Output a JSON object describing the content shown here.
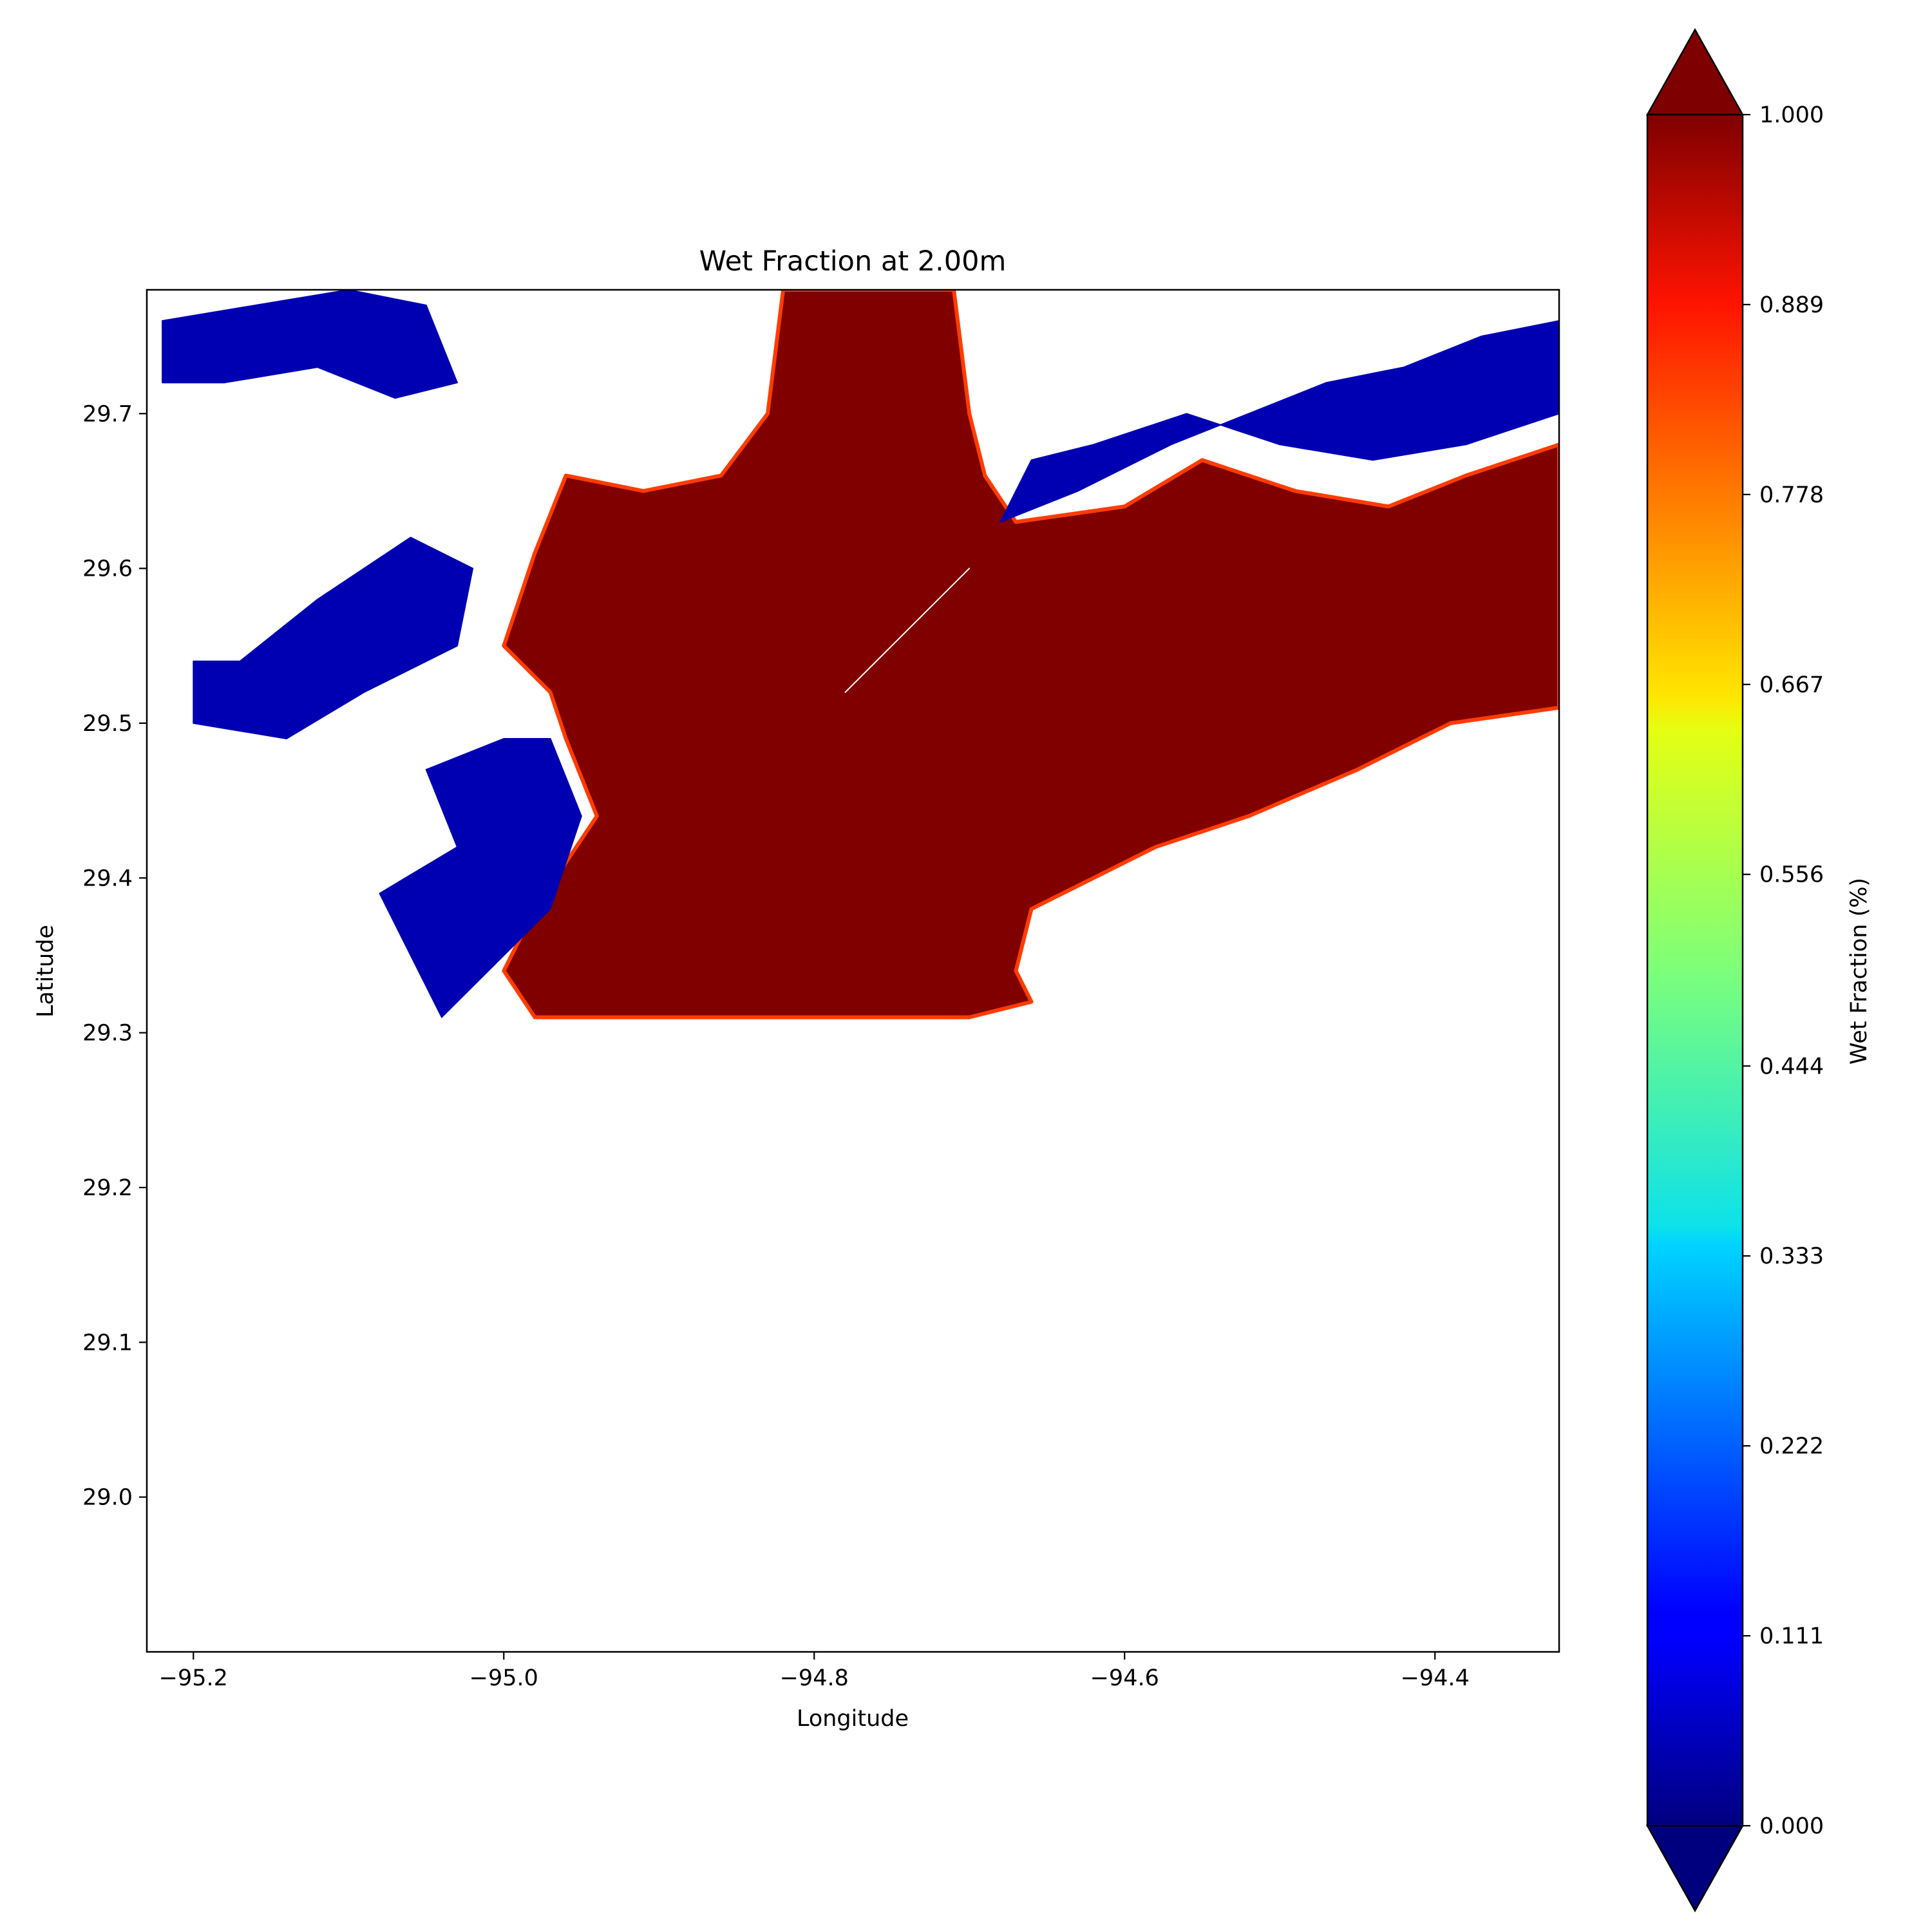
{
  "chart_data": {
    "type": "heatmap",
    "title": "Wet Fraction at 2.00m",
    "xlabel": "Longitude",
    "ylabel": "Latitude",
    "xlim": [
      -95.23,
      -94.32
    ],
    "ylim": [
      28.9,
      29.78
    ],
    "x_ticks": [
      {
        "value": -95.2,
        "label": "−95.2"
      },
      {
        "value": -95.0,
        "label": "−95.0"
      },
      {
        "value": -94.8,
        "label": "−94.8"
      },
      {
        "value": -94.6,
        "label": "−94.6"
      },
      {
        "value": -94.4,
        "label": "−94.4"
      }
    ],
    "y_ticks": [
      {
        "value": 29.7,
        "label": "29.7"
      },
      {
        "value": 29.6,
        "label": "29.6"
      },
      {
        "value": 29.5,
        "label": "29.5"
      },
      {
        "value": 29.4,
        "label": "29.4"
      },
      {
        "value": 29.3,
        "label": "29.3"
      },
      {
        "value": 29.2,
        "label": "29.2"
      },
      {
        "value": 29.1,
        "label": "29.1"
      },
      {
        "value": 29.0,
        "label": "29.0"
      }
    ],
    "colorbar": {
      "label": "Wet Fraction (%)",
      "colormap": "jet",
      "range": [
        0.0,
        1.0
      ],
      "extend": "both",
      "ticks": [
        {
          "value": 0.0,
          "label": "0.000"
        },
        {
          "value": 0.111,
          "label": "0.111"
        },
        {
          "value": 0.222,
          "label": "0.222"
        },
        {
          "value": 0.333,
          "label": "0.333"
        },
        {
          "value": 0.444,
          "label": "0.444"
        },
        {
          "value": 0.556,
          "label": "0.556"
        },
        {
          "value": 0.667,
          "label": "0.667"
        },
        {
          "value": 0.778,
          "label": "0.778"
        },
        {
          "value": 0.889,
          "label": "0.889"
        },
        {
          "value": 1.0,
          "label": "1.000"
        }
      ]
    },
    "regions": [
      {
        "value": 1.0,
        "polygon": [
          [
            -95.0,
            29.55
          ],
          [
            -94.98,
            29.61
          ],
          [
            -94.96,
            29.66
          ],
          [
            -94.91,
            29.65
          ],
          [
            -94.86,
            29.66
          ],
          [
            -94.83,
            29.7
          ],
          [
            -94.82,
            29.78
          ],
          [
            -94.71,
            29.78
          ],
          [
            -94.7,
            29.7
          ],
          [
            -94.69,
            29.66
          ],
          [
            -94.67,
            29.63
          ],
          [
            -94.6,
            29.64
          ],
          [
            -94.55,
            29.67
          ],
          [
            -94.49,
            29.65
          ],
          [
            -94.43,
            29.64
          ],
          [
            -94.38,
            29.66
          ],
          [
            -94.32,
            29.68
          ],
          [
            -94.32,
            29.51
          ],
          [
            -94.39,
            29.5
          ],
          [
            -94.45,
            29.47
          ],
          [
            -94.52,
            29.44
          ],
          [
            -94.58,
            29.42
          ],
          [
            -94.62,
            29.4
          ],
          [
            -94.66,
            29.38
          ],
          [
            -94.67,
            29.34
          ],
          [
            -94.66,
            29.32
          ],
          [
            -94.7,
            29.31
          ],
          [
            -94.8,
            29.31
          ],
          [
            -94.88,
            29.31
          ],
          [
            -94.98,
            29.31
          ],
          [
            -95.0,
            29.34
          ],
          [
            -94.98,
            29.38
          ],
          [
            -94.94,
            29.44
          ],
          [
            -94.96,
            29.49
          ],
          [
            -94.97,
            29.52
          ]
        ]
      },
      {
        "value": 0.05,
        "polygon": [
          [
            -95.17,
            29.54
          ],
          [
            -95.12,
            29.58
          ],
          [
            -95.06,
            29.62
          ],
          [
            -95.02,
            29.6
          ],
          [
            -95.03,
            29.55
          ],
          [
            -95.09,
            29.52
          ],
          [
            -95.14,
            29.49
          ],
          [
            -95.2,
            29.5
          ],
          [
            -95.2,
            29.54
          ]
        ]
      },
      {
        "value": 0.05,
        "polygon": [
          [
            -95.0,
            29.49
          ],
          [
            -94.97,
            29.49
          ],
          [
            -94.95,
            29.44
          ],
          [
            -94.97,
            29.38
          ],
          [
            -95.01,
            29.34
          ],
          [
            -95.04,
            29.31
          ],
          [
            -95.06,
            29.35
          ],
          [
            -95.08,
            29.39
          ],
          [
            -95.03,
            29.42
          ],
          [
            -95.05,
            29.47
          ]
        ]
      },
      {
        "value": 0.05,
        "polygon": [
          [
            -94.68,
            29.63
          ],
          [
            -94.63,
            29.65
          ],
          [
            -94.57,
            29.68
          ],
          [
            -94.52,
            29.7
          ],
          [
            -94.47,
            29.72
          ],
          [
            -94.42,
            29.73
          ],
          [
            -94.37,
            29.75
          ],
          [
            -94.32,
            29.76
          ],
          [
            -94.32,
            29.7
          ],
          [
            -94.38,
            29.68
          ],
          [
            -94.44,
            29.67
          ],
          [
            -94.5,
            29.68
          ],
          [
            -94.56,
            29.7
          ],
          [
            -94.62,
            29.68
          ],
          [
            -94.66,
            29.67
          ]
        ]
      },
      {
        "value": 0.05,
        "polygon": [
          [
            -95.22,
            29.76
          ],
          [
            -95.16,
            29.77
          ],
          [
            -95.1,
            29.78
          ],
          [
            -95.05,
            29.77
          ],
          [
            -95.03,
            29.72
          ],
          [
            -95.07,
            29.71
          ],
          [
            -95.12,
            29.73
          ],
          [
            -95.18,
            29.72
          ],
          [
            -95.22,
            29.72
          ]
        ]
      },
      {
        "value": 0.0,
        "polygon": [
          [
            -94.72,
            29.58
          ],
          [
            -94.7,
            29.6
          ],
          [
            -94.76,
            29.54
          ],
          [
            -94.78,
            29.52
          ],
          [
            -94.77,
            29.53
          ]
        ]
      }
    ]
  }
}
